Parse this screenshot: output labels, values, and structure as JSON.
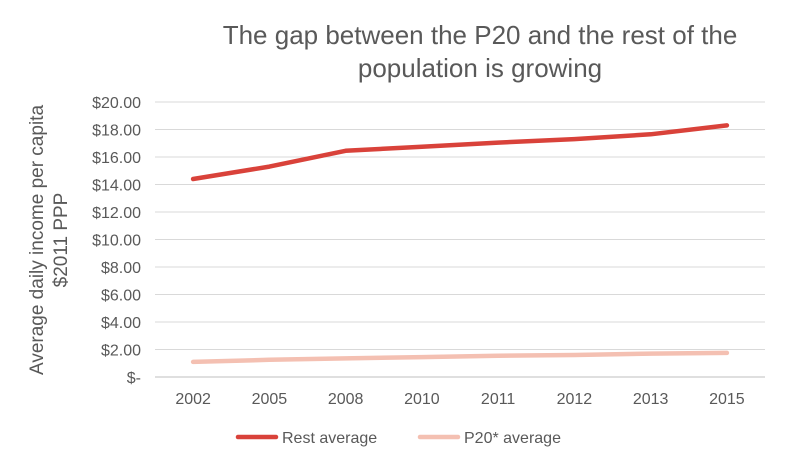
{
  "chart_data": {
    "type": "line",
    "title_lines": [
      "The gap between the P20 and the rest of the",
      "population is growing"
    ],
    "ylabel_lines": [
      "Average daily income per capita",
      "$2011 PPP"
    ],
    "xlabel": "",
    "categories": [
      "2002",
      "2005",
      "2008",
      "2010",
      "2011",
      "2012",
      "2013",
      "2015"
    ],
    "ylim": [
      0,
      20
    ],
    "ytick_labels": [
      "$-",
      "$2.00",
      "$4.00",
      "$6.00",
      "$8.00",
      "$10.00",
      "$12.00",
      "$14.00",
      "$16.00",
      "$18.00",
      "$20.00"
    ],
    "grid": true,
    "legend_position": "bottom",
    "series": [
      {
        "name": "Rest average",
        "color": "#d9423a",
        "values": [
          14.4,
          15.3,
          16.45,
          16.75,
          17.05,
          17.3,
          17.65,
          18.3
        ]
      },
      {
        "name": "P20* average",
        "color": "#f4c0b2",
        "values": [
          1.1,
          1.25,
          1.35,
          1.45,
          1.55,
          1.6,
          1.7,
          1.75
        ]
      }
    ]
  }
}
